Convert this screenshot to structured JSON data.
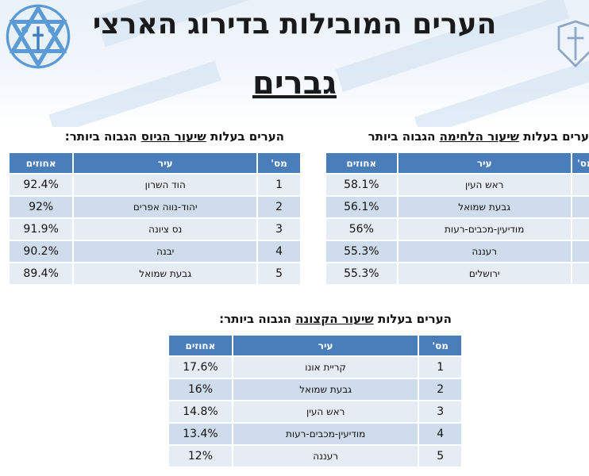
{
  "header": {
    "title": "הערים המובילות בדירוג הארצי",
    "subtitle": "גברים"
  },
  "tables": {
    "fighting": {
      "caption_pre": "ערים בעלות ",
      "caption_em": "שיעור הלחימה",
      "caption_post": " הגבוה ביותר",
      "headers": {
        "num": "מס'",
        "city": "עיר",
        "pct": "אחוזים"
      },
      "rows": [
        {
          "city": "ראש העין",
          "pct": "58.1%"
        },
        {
          "city": "גבעת שמואל",
          "pct": "56.1%"
        },
        {
          "city": "מודיעין-מכבים-רעות",
          "pct": "56%"
        },
        {
          "city": "רעננה",
          "pct": "55.3%"
        },
        {
          "city": "ירושלים",
          "pct": "55.3%"
        }
      ]
    },
    "draft": {
      "caption_pre": "הערים בעלות ",
      "caption_em": "שיעור הגיוס",
      "caption_post": " הגבוה ביותר:",
      "headers": {
        "num": "מס'",
        "city": "עיר",
        "pct": "אחוזים"
      },
      "rows": [
        {
          "num": "1",
          "city": "הוד השרון",
          "pct": "92.4%"
        },
        {
          "num": "2",
          "city": "יהוד-נווה אפרים",
          "pct": "92%"
        },
        {
          "num": "3",
          "city": "נס ציונה",
          "pct": "91.9%"
        },
        {
          "num": "4",
          "city": "יבנה",
          "pct": "90.2%"
        },
        {
          "num": "5",
          "city": "גבעת שמואל",
          "pct": "89.4%"
        }
      ]
    },
    "officers": {
      "caption_pre": "הערים בעלות ",
      "caption_em": "שיעור הקצונה",
      "caption_post": " הגבוה ביותר:",
      "headers": {
        "num": "מס'",
        "city": "עיר",
        "pct": "אחוזים"
      },
      "rows": [
        {
          "num": "1",
          "city": "קריית אונו",
          "pct": "17.6%"
        },
        {
          "num": "2",
          "city": "גבעת שמואל",
          "pct": "16%"
        },
        {
          "num": "3",
          "city": "ראש העין",
          "pct": "14.8%"
        },
        {
          "num": "4",
          "city": "מודיעין-מכבים-רעות",
          "pct": "13.4%"
        },
        {
          "num": "5",
          "city": "רעננה",
          "pct": "12%"
        }
      ]
    }
  }
}
